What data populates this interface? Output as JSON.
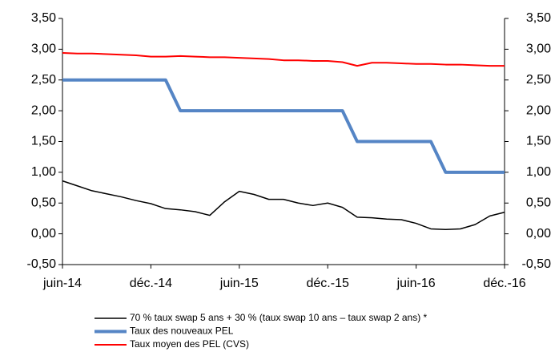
{
  "chart_data": {
    "type": "line",
    "categories": [
      "juin-14",
      null,
      null,
      null,
      null,
      null,
      "déc.-14",
      null,
      null,
      null,
      null,
      null,
      "juin-15",
      null,
      null,
      null,
      null,
      null,
      "déc.-15",
      null,
      null,
      null,
      null,
      null,
      "juin-16",
      null,
      null,
      null,
      null,
      null,
      "déc.-16"
    ],
    "series": [
      {
        "name": "70 % taux swap 5 ans + 30 % (taux swap 10 ans – taux swap 2 ans) *",
        "color": "#000000",
        "width": 1.5,
        "values": [
          0.86,
          0.78,
          0.7,
          0.65,
          0.6,
          0.54,
          0.49,
          0.41,
          0.39,
          0.36,
          0.3,
          0.52,
          0.69,
          0.64,
          0.56,
          0.56,
          0.5,
          0.46,
          0.5,
          0.43,
          0.27,
          0.26,
          0.24,
          0.23,
          0.17,
          0.08,
          0.07,
          0.08,
          0.15,
          0.29,
          0.35
        ]
      },
      {
        "name": "Taux des nouveaux PEL",
        "color": "#5585c5",
        "width": 4,
        "values": [
          2.5,
          2.5,
          2.5,
          2.5,
          2.5,
          2.5,
          2.5,
          2.5,
          2.0,
          2.0,
          2.0,
          2.0,
          2.0,
          2.0,
          2.0,
          2.0,
          2.0,
          2.0,
          2.0,
          2.0,
          1.5,
          1.5,
          1.5,
          1.5,
          1.5,
          1.5,
          1.0,
          1.0,
          1.0,
          1.0,
          1.0
        ]
      },
      {
        "name": "Taux moyen des PEL (CVS)",
        "color": "#ff0000",
        "width": 2,
        "values": [
          2.94,
          2.93,
          2.93,
          2.92,
          2.91,
          2.9,
          2.88,
          2.88,
          2.89,
          2.88,
          2.87,
          2.87,
          2.86,
          2.85,
          2.84,
          2.82,
          2.82,
          2.81,
          2.81,
          2.79,
          2.73,
          2.78,
          2.78,
          2.77,
          2.76,
          2.76,
          2.75,
          2.75,
          2.74,
          2.73,
          2.73
        ]
      }
    ],
    "ylim": [
      -0.5,
      3.5
    ],
    "yticks": [
      {
        "value": -0.5,
        "label": "-0,50"
      },
      {
        "value": 0,
        "label": "0,00"
      },
      {
        "value": 0.5,
        "label": "0,50"
      },
      {
        "value": 1,
        "label": "1,00"
      },
      {
        "value": 1.5,
        "label": "1,50"
      },
      {
        "value": 2,
        "label": "2,00"
      },
      {
        "value": 2.5,
        "label": "2,50"
      },
      {
        "value": 3,
        "label": "3,00"
      },
      {
        "value": 3.5,
        "label": "3,50"
      }
    ],
    "y2lim": [
      -0.5,
      3.5
    ],
    "y2ticks": [
      {
        "value": -0.5,
        "label": "-0,50"
      },
      {
        "value": 0,
        "label": "0,00"
      },
      {
        "value": 0.5,
        "label": "0,50"
      },
      {
        "value": 1,
        "label": "1,00"
      },
      {
        "value": 1.5,
        "label": "1,50"
      },
      {
        "value": 2,
        "label": "2,00"
      },
      {
        "value": 2.5,
        "label": "2,50"
      },
      {
        "value": 3,
        "label": "3,00"
      },
      {
        "value": 3.5,
        "label": "3,50"
      }
    ],
    "grid": false,
    "legend": "bottom"
  }
}
